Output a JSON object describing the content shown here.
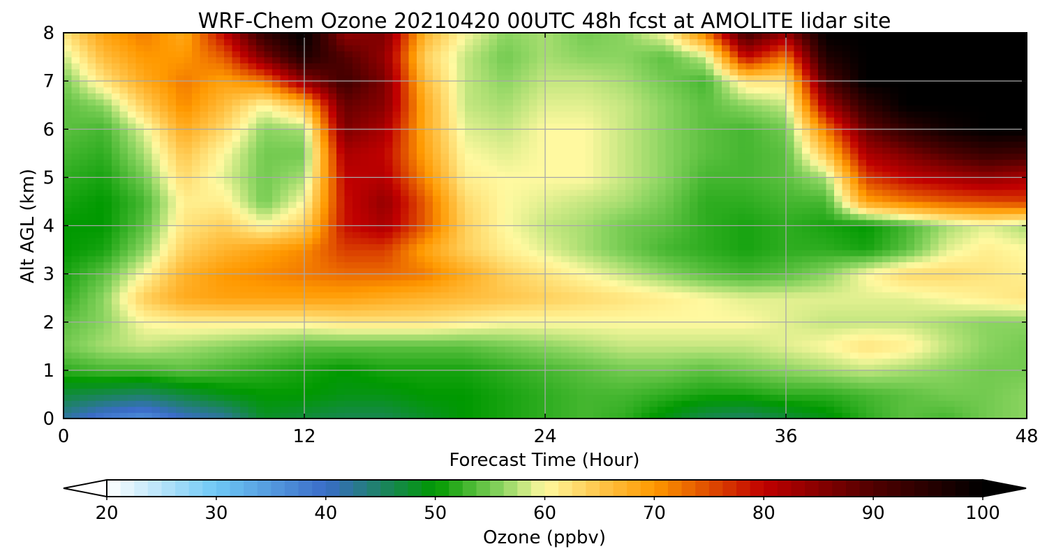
{
  "chart_data": {
    "type": "heatmap",
    "title": "WRF-Chem Ozone  20210420 00UTC 48h fcst at AMOLITE lidar site",
    "xlabel": "Forecast Time (Hour)",
    "ylabel": "Alt AGL (km)",
    "xlim": [
      0,
      48
    ],
    "ylim": [
      0,
      8
    ],
    "x_ticks": [
      "0",
      "12",
      "24",
      "36",
      "48"
    ],
    "y_ticks": [
      "0",
      "1",
      "2",
      "3",
      "4",
      "5",
      "6",
      "7",
      "8"
    ],
    "grid": true,
    "colorbar": {
      "label": "Ozone  (ppbv)",
      "range": [
        20,
        100
      ],
      "ticks": [
        "20",
        "30",
        "40",
        "50",
        "60",
        "70",
        "80",
        "90",
        "100"
      ],
      "extend": "both",
      "stops": [
        {
          "value": 20,
          "color": "#ffffff"
        },
        {
          "value": 30,
          "color": "#6ec8f5"
        },
        {
          "value": 40,
          "color": "#3a6cc8"
        },
        {
          "value": 50,
          "color": "#009900"
        },
        {
          "value": 56,
          "color": "#8ad460"
        },
        {
          "value": 60,
          "color": "#fff9a0"
        },
        {
          "value": 65,
          "color": "#ffc54a"
        },
        {
          "value": 70,
          "color": "#ff9900"
        },
        {
          "value": 80,
          "color": "#c00000"
        },
        {
          "value": 90,
          "color": "#500000"
        },
        {
          "value": 100,
          "color": "#000000"
        }
      ]
    },
    "x_hours": [
      0,
      2,
      4,
      6,
      8,
      10,
      12,
      14,
      16,
      18,
      20,
      22,
      24,
      26,
      28,
      30,
      32,
      34,
      36,
      38,
      40,
      42,
      44,
      46,
      48
    ],
    "y_km": [
      0,
      0.5,
      1,
      1.5,
      2,
      2.5,
      3,
      3.5,
      4,
      4.5,
      5,
      5.5,
      6,
      6.5,
      7,
      7.5,
      8
    ],
    "ozone_ppbv": [
      [
        42,
        38,
        36,
        40,
        42,
        48,
        47,
        46,
        46,
        48,
        50,
        51,
        52,
        53,
        52,
        49,
        46,
        45,
        47,
        49,
        52,
        54,
        53,
        55,
        56
      ],
      [
        47,
        46,
        45,
        47,
        49,
        50,
        50,
        49,
        49,
        50,
        50,
        51,
        52,
        53,
        53,
        52,
        51,
        51,
        52,
        52,
        53,
        54,
        55,
        55,
        56
      ],
      [
        52,
        53,
        53,
        54,
        53,
        52,
        51,
        50,
        51,
        51,
        51,
        52,
        53,
        54,
        55,
        55,
        54,
        55,
        56,
        57,
        58,
        57,
        56,
        55,
        55
      ],
      [
        55,
        57,
        58,
        57,
        56,
        55,
        54,
        54,
        54,
        54,
        54,
        55,
        56,
        57,
        58,
        58,
        58,
        58,
        59,
        60,
        62,
        61,
        58,
        56,
        55
      ],
      [
        54,
        56,
        60,
        61,
        61,
        61,
        61,
        62,
        62,
        62,
        61,
        60,
        60,
        60,
        60,
        60,
        60,
        60,
        59,
        58,
        58,
        58,
        57,
        56,
        56
      ],
      [
        52,
        56,
        64,
        68,
        69,
        69,
        69,
        69,
        68,
        67,
        66,
        65,
        64,
        63,
        62,
        61,
        60,
        59,
        59,
        59,
        59,
        59,
        60,
        61,
        62
      ],
      [
        51,
        54,
        60,
        67,
        70,
        71,
        72,
        73,
        73,
        72,
        68,
        64,
        62,
        60,
        58,
        56,
        54,
        53,
        54,
        56,
        60,
        63,
        63,
        62,
        61
      ],
      [
        50,
        51,
        56,
        64,
        67,
        69,
        71,
        76,
        76,
        69,
        64,
        61,
        59,
        57,
        55,
        53,
        52,
        51,
        52,
        52,
        51,
        54,
        59,
        61,
        60
      ],
      [
        50,
        50,
        54,
        62,
        64,
        60,
        64,
        79,
        82,
        74,
        64,
        60,
        58,
        57,
        55,
        54,
        52,
        51,
        52,
        51,
        50,
        53,
        57,
        59,
        57
      ],
      [
        51,
        50,
        53,
        61,
        61,
        55,
        60,
        79,
        84,
        74,
        63,
        60,
        59,
        58,
        57,
        55,
        52,
        52,
        53,
        53,
        69,
        72,
        74,
        75,
        76
      ],
      [
        52,
        51,
        55,
        63,
        59,
        55,
        57,
        80,
        81,
        71,
        61,
        60,
        60,
        60,
        58,
        56,
        53,
        53,
        54,
        57,
        76,
        80,
        82,
        84,
        82
      ],
      [
        53,
        52,
        57,
        65,
        60,
        55,
        55,
        82,
        80,
        69,
        60,
        59,
        60,
        60,
        58,
        56,
        54,
        53,
        54,
        65,
        82,
        86,
        90,
        93,
        92
      ],
      [
        54,
        53,
        59,
        68,
        63,
        56,
        57,
        86,
        82,
        68,
        59,
        58,
        60,
        60,
        58,
        56,
        54,
        53,
        55,
        72,
        88,
        94,
        98,
        100,
        100
      ],
      [
        54,
        56,
        64,
        71,
        66,
        60,
        66,
        88,
        85,
        68,
        58,
        57,
        59,
        59,
        58,
        56,
        54,
        56,
        58,
        82,
        94,
        100,
        100,
        100,
        100
      ],
      [
        55,
        62,
        68,
        72,
        69,
        72,
        84,
        92,
        86,
        66,
        58,
        56,
        58,
        58,
        57,
        55,
        53,
        62,
        62,
        90,
        100,
        100,
        100,
        100,
        100
      ],
      [
        58,
        66,
        70,
        70,
        74,
        86,
        96,
        90,
        84,
        64,
        58,
        55,
        57,
        56,
        56,
        54,
        58,
        80,
        72,
        96,
        100,
        100,
        100,
        100,
        100
      ],
      [
        62,
        69,
        72,
        68,
        80,
        94,
        100,
        84,
        86,
        67,
        60,
        56,
        57,
        55,
        56,
        60,
        72,
        92,
        84,
        100,
        100,
        100,
        100,
        100,
        100
      ]
    ]
  }
}
